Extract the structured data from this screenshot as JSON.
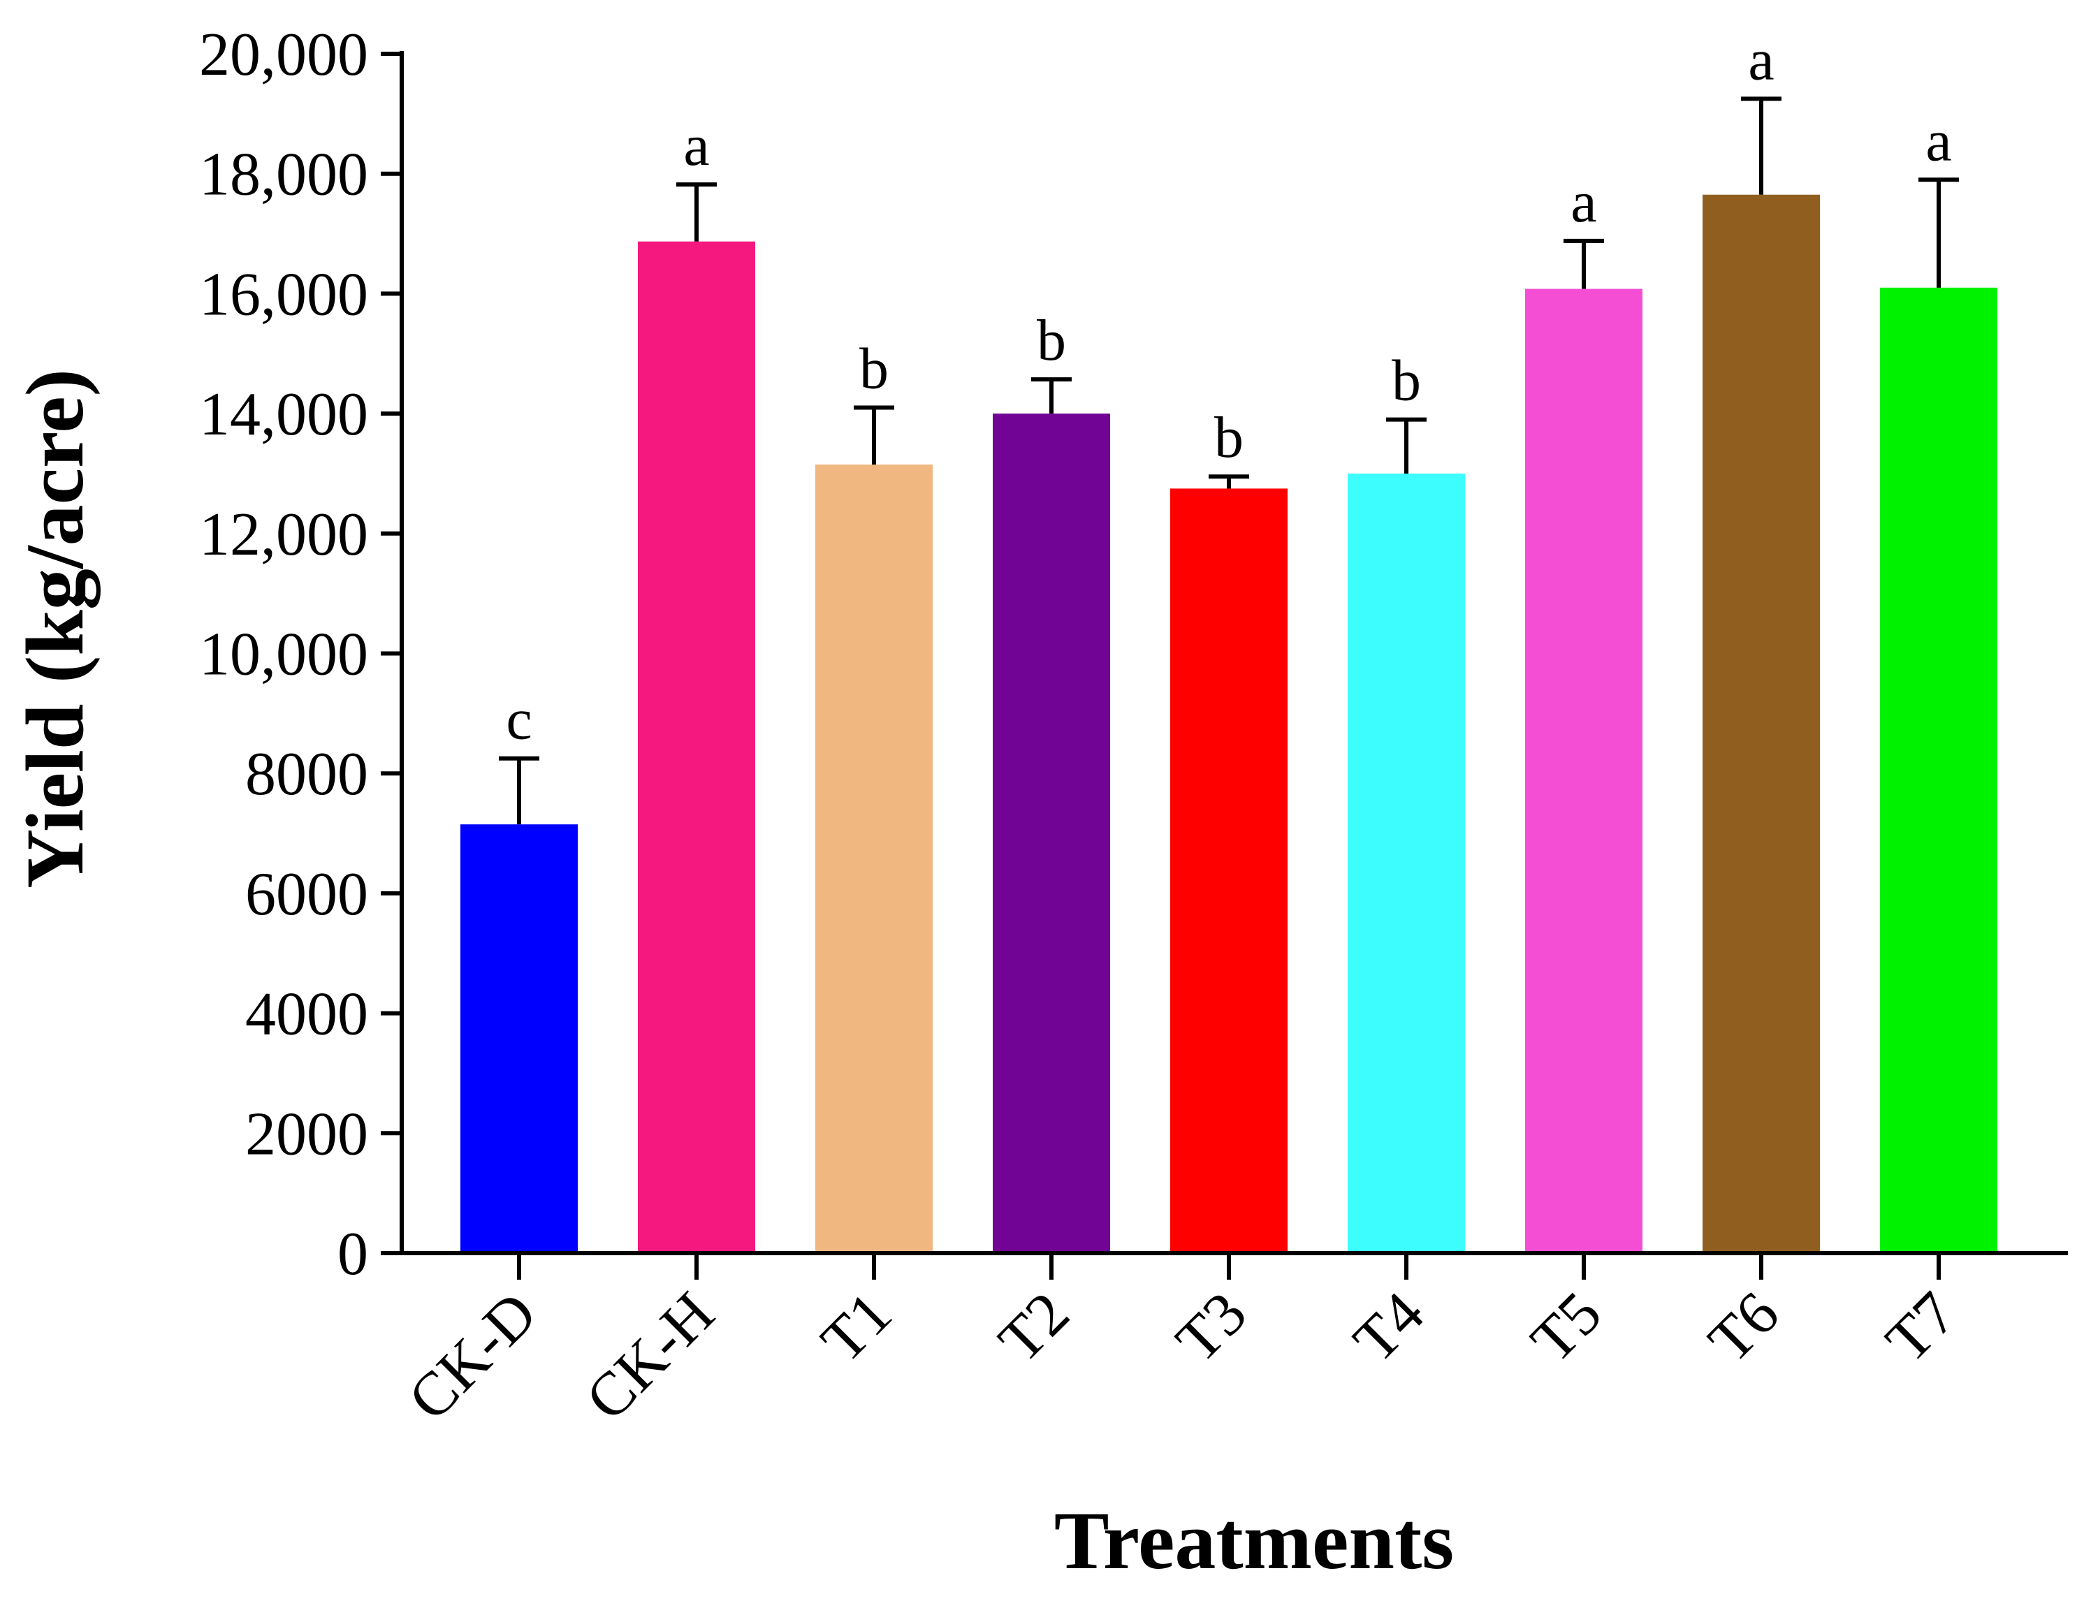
{
  "chart_data": {
    "type": "bar",
    "title": "",
    "xlabel": "Treatments",
    "ylabel": "Yield (kg/acre)",
    "ylim": [
      0,
      20000
    ],
    "yticks": [
      0,
      2000,
      4000,
      6000,
      8000,
      10000,
      12000,
      14000,
      16000,
      18000,
      20000
    ],
    "ytick_labels": [
      "0",
      "2000",
      "4000",
      "6000",
      "8000",
      "10,000",
      "12,000",
      "14,000",
      "16,000",
      "18,000",
      "20,000"
    ],
    "categories": [
      "CK-D",
      "CK-H",
      "T1",
      "T2",
      "T3",
      "T4",
      "T5",
      "T6",
      "T7"
    ],
    "values": [
      7150,
      16870,
      13150,
      14000,
      12750,
      13000,
      16080,
      17650,
      16100
    ],
    "errors": [
      1100,
      950,
      950,
      570,
      200,
      900,
      800,
      1600,
      1800
    ],
    "significance": [
      "c",
      "a",
      "b",
      "b",
      "b",
      "b",
      "a",
      "a",
      "a"
    ],
    "colors": [
      "#0000ff",
      "#f5187e",
      "#f0b780",
      "#710494",
      "#ff0000",
      "#3dfdff",
      "#f44fd4",
      "#905f20",
      "#00f200"
    ],
    "grid": false,
    "legend": null
  }
}
